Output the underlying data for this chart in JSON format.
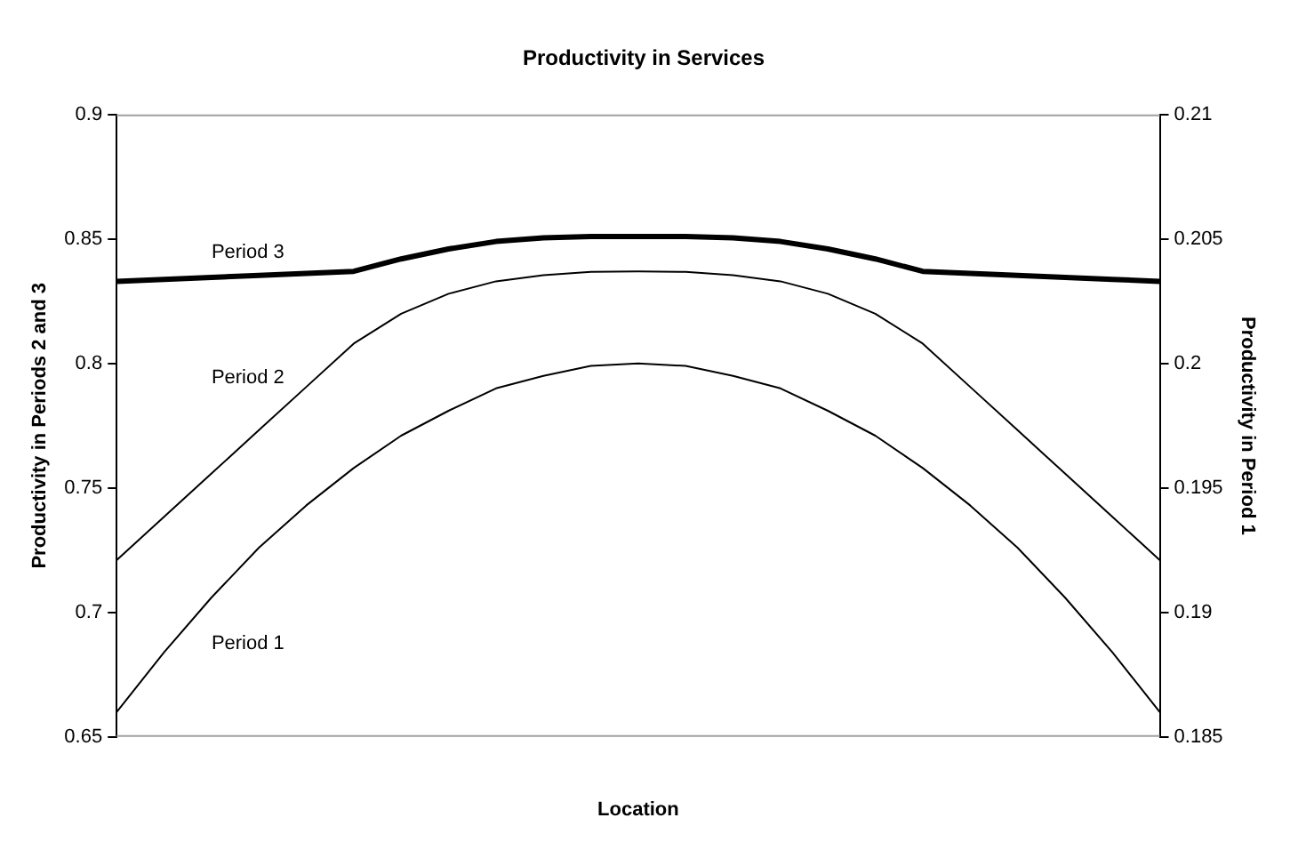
{
  "chart_data": {
    "type": "line",
    "title": "Productivity in Services",
    "xlabel": "Location",
    "ylabel": "Productivity in Periods 2 and 3",
    "y2label": "Productivity in Period 1",
    "categories": [
      null,
      null,
      null,
      null,
      null,
      null,
      null,
      null,
      null,
      null,
      null,
      null,
      null,
      null,
      null,
      null,
      null,
      null,
      null,
      null,
      null,
      null,
      null
    ],
    "series": [
      {
        "name": "Period 3",
        "color": "#000000",
        "values": [
          0.833,
          0.8338,
          0.8346,
          0.8354,
          0.8362,
          0.837,
          0.842,
          0.846,
          0.849,
          0.8505,
          0.851,
          0.851,
          0.851,
          0.8505,
          0.849,
          0.846,
          0.842,
          0.837,
          0.8362,
          0.8354,
          0.8346,
          0.8338,
          0.833
        ]
      },
      {
        "name": "Period 2",
        "color": "#000000",
        "values": [
          0.721,
          0.7384,
          0.7558,
          0.7732,
          0.7906,
          0.808,
          0.82,
          0.828,
          0.833,
          0.8355,
          0.8368,
          0.837,
          0.8368,
          0.8355,
          0.833,
          0.828,
          0.82,
          0.808,
          0.7906,
          0.7732,
          0.7558,
          0.7384,
          0.721
        ]
      },
      {
        "name": "Period 1",
        "color": "#000000",
        "axis": "y2",
        "values": [
          0.186,
          0.1884,
          0.1906,
          0.1926,
          0.1943,
          0.1958,
          0.1971,
          0.1981,
          0.199,
          0.1995,
          0.1999,
          0.2,
          0.1999,
          0.1995,
          0.199,
          0.1981,
          0.1971,
          0.1958,
          0.1943,
          0.1926,
          0.1906,
          0.1884,
          0.186
        ]
      }
    ],
    "ylim": [
      0.65,
      0.9
    ],
    "yticks": [
      0.65,
      0.7,
      0.75,
      0.8,
      0.85,
      0.9
    ],
    "y2lim": [
      0.185,
      0.21
    ],
    "y2ticks": [
      0.185,
      0.19,
      0.195,
      0.2,
      0.205,
      0.21
    ],
    "grid": false,
    "legend": false,
    "marker": "none",
    "line_style": "solid"
  }
}
